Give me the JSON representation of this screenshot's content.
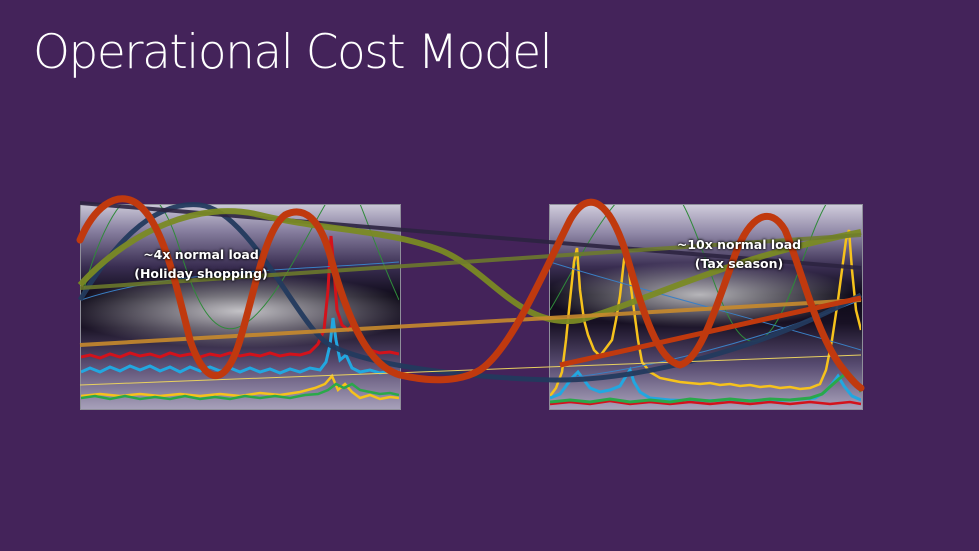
{
  "slide": {
    "title": "Operational Cost Model"
  },
  "annotations": {
    "left_line1": "~4x normal load",
    "left_line2": "(Holiday shopping)",
    "right_line1": "~10x normal load",
    "right_line2": "(Tax season)"
  },
  "colors": {
    "background": "#44235a",
    "orange_curve": "#c0390e",
    "olive_curve": "#7a8a24",
    "navy_curve": "#233a5e",
    "yellow_series": "#f6c21c",
    "cyan_series": "#22a7e0",
    "red_series": "#d3121b",
    "green_series": "#2aa84a"
  }
}
